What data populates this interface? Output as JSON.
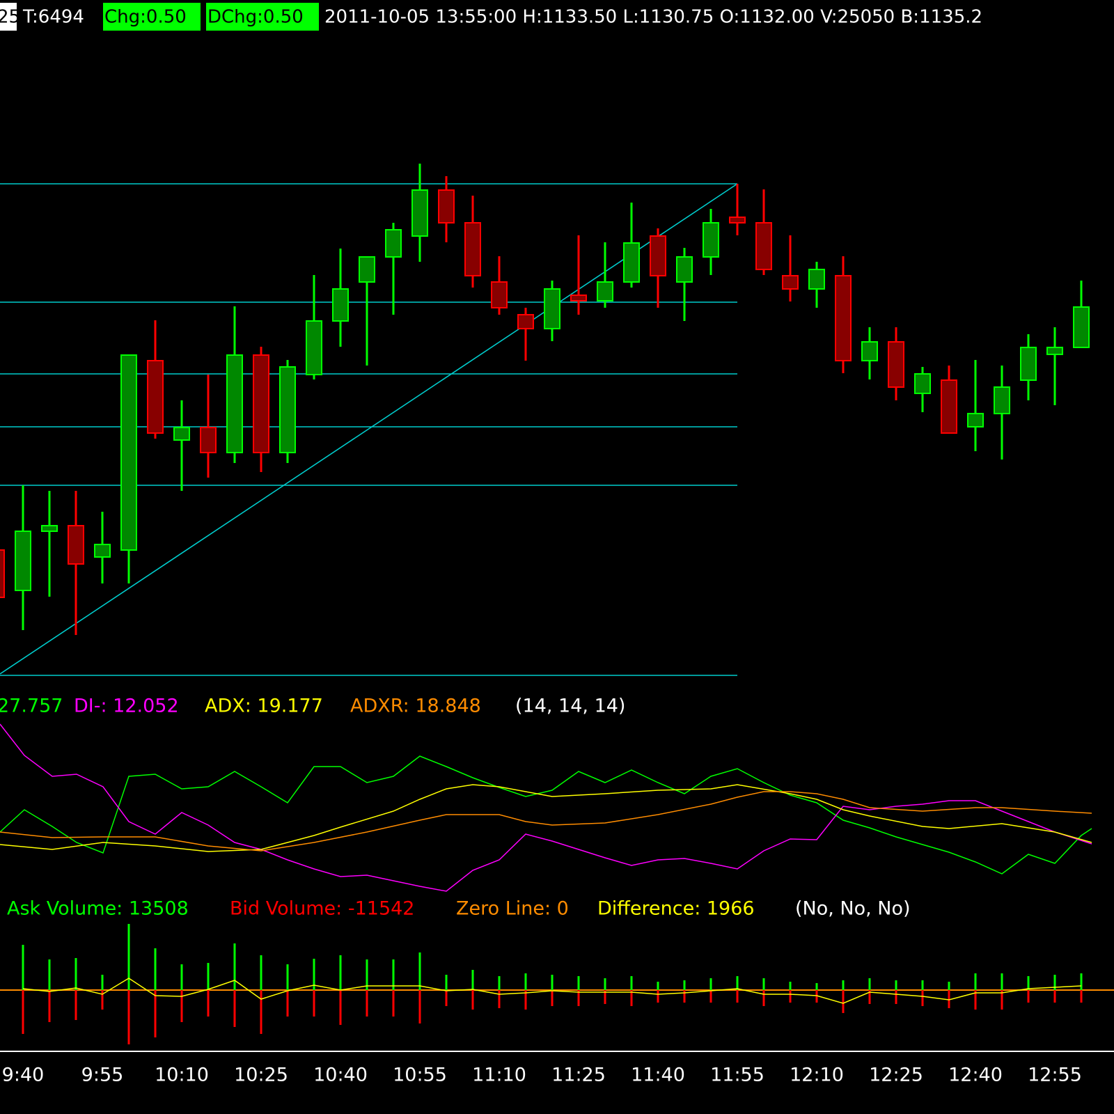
{
  "header": {
    "items": [
      "25",
      "T:6494",
      "Chg:0.50",
      "DChg:0.50",
      "2011-10-05 13:55:00 H:1133.50 L:1130.75 O:1132.00 V:25050 B:1135.2"
    ]
  },
  "chart_data": {
    "type": "candlestick",
    "categories": [
      null,
      "9:40",
      null,
      null,
      "9:55",
      null,
      null,
      "10:10",
      null,
      null,
      "10:25",
      null,
      null,
      "10:40",
      null,
      null,
      "10:55",
      null,
      null,
      "11:10",
      null,
      null,
      "11:25",
      null,
      null,
      "11:40",
      null,
      null,
      "11:55",
      null,
      null,
      "12:10",
      null,
      null,
      "12:25",
      null,
      null,
      "12:40",
      null,
      null,
      "12:55",
      null
    ],
    "open": [
      210,
      152,
      237,
      245,
      200,
      210,
      482,
      368,
      386,
      350,
      490,
      350,
      462,
      539,
      595,
      631,
      661,
      727,
      680,
      595,
      548,
      528,
      576,
      568,
      595,
      661,
      595,
      631,
      688,
      680,
      604,
      585,
      604,
      482,
      509,
      435,
      454,
      387,
      406,
      454,
      491,
      501
    ],
    "high": [
      240,
      303,
      295,
      295,
      265,
      490,
      540,
      425,
      462,
      560,
      502,
      483,
      605,
      643,
      631,
      680,
      765,
      747,
      719,
      632,
      558,
      597,
      662,
      652,
      709,
      672,
      644,
      700,
      736,
      728,
      662,
      624,
      632,
      530,
      530,
      473,
      475,
      483,
      475,
      520,
      530,
      597
    ],
    "low": [
      130,
      95,
      143,
      88,
      162,
      162,
      370,
      295,
      314,
      335,
      322,
      335,
      455,
      502,
      475,
      548,
      624,
      652,
      587,
      548,
      482,
      510,
      548,
      558,
      587,
      558,
      539,
      605,
      662,
      605,
      567,
      558,
      464,
      455,
      425,
      408,
      378,
      352,
      340,
      425,
      418,
      501
    ],
    "close": [
      142,
      237,
      245,
      190,
      218,
      490,
      378,
      386,
      350,
      490,
      350,
      473,
      539,
      585,
      631,
      670,
      727,
      680,
      604,
      558,
      528,
      585,
      568,
      595,
      651,
      604,
      631,
      680,
      680,
      613,
      585,
      613,
      482,
      509,
      444,
      463,
      378,
      406,
      444,
      501,
      501,
      559
    ],
    "up_color": "#00ff00",
    "down_color": "#ff0000",
    "ylim": [
      30,
      770
    ],
    "adx_legend": [
      "27.757",
      "DI-: 12.052",
      "ADX: 19.177",
      "ADXR: 18.848",
      "(14, 14, 14)"
    ],
    "volume_legend": [
      "Ask Volume: 13508",
      "Bid Volume: -11542",
      "Zero Line: 0",
      "Difference: 1966",
      "(No, No, No)"
    ],
    "ask_volume": [
      null,
      65,
      44,
      46,
      22,
      95,
      60,
      37,
      39,
      67,
      50,
      37,
      45,
      50,
      44,
      44,
      54,
      22,
      29,
      20,
      24,
      22,
      20,
      17,
      20,
      12,
      14,
      17,
      20,
      17,
      12,
      10,
      14,
      17,
      14,
      14,
      12,
      24,
      24,
      20,
      22,
      24
    ],
    "bid_volume": [
      null,
      -63,
      -46,
      -43,
      -28,
      -78,
      -68,
      -46,
      -38,
      -53,
      -63,
      -38,
      -38,
      -50,
      -38,
      -38,
      -48,
      -23,
      -28,
      -26,
      -28,
      -23,
      -23,
      -20,
      -23,
      -18,
      -18,
      -18,
      -18,
      -23,
      -18,
      -18,
      -33,
      -20,
      -20,
      -23,
      -26,
      -28,
      -28,
      -18,
      -18,
      -18
    ],
    "vlim": [
      -100,
      100
    ]
  }
}
